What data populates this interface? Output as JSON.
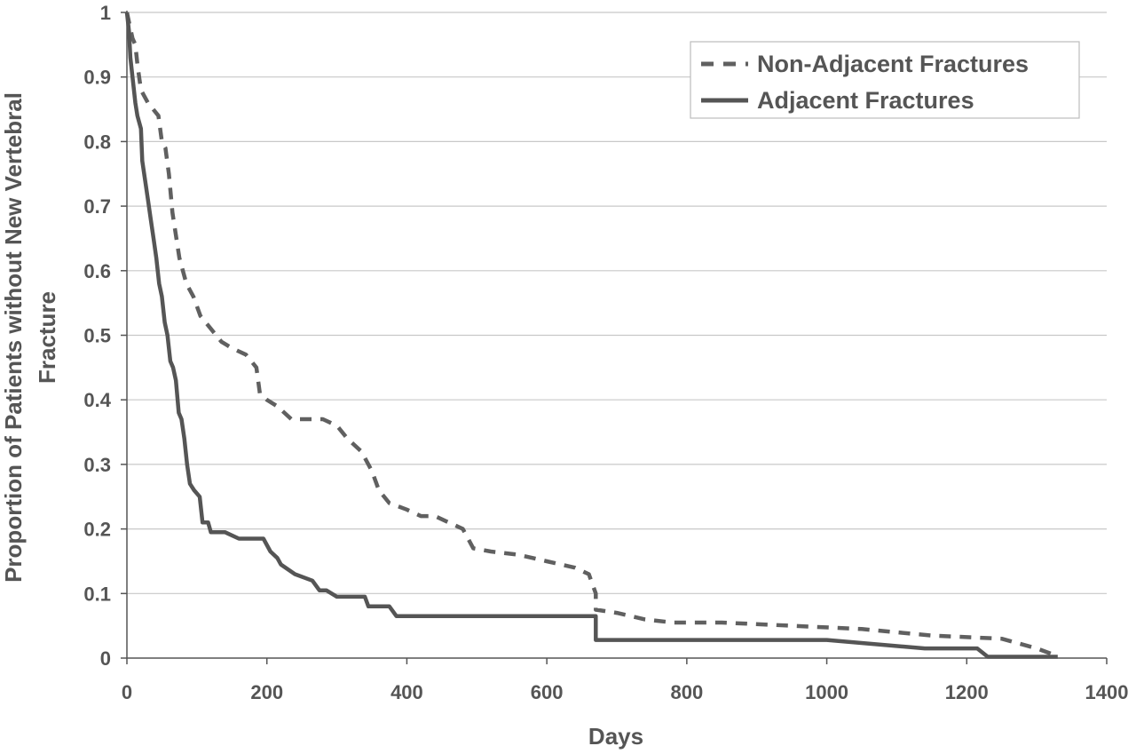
{
  "chart_data": {
    "type": "line",
    "title": "",
    "xlabel": "Days",
    "ylabel_lines": [
      "Proportion of Patients without New Vertebral",
      "Fracture"
    ],
    "xlim": [
      0,
      1400
    ],
    "ylim": [
      0,
      1
    ],
    "x_ticks": [
      0,
      200,
      400,
      600,
      800,
      1000,
      1200,
      1400
    ],
    "y_ticks": [
      0,
      0.1,
      0.2,
      0.3,
      0.4,
      0.5,
      0.6,
      0.7,
      0.8,
      0.9,
      1
    ],
    "x_tick_labels": [
      "0",
      "200",
      "400",
      "600",
      "800",
      "1000",
      "1200",
      "1400"
    ],
    "y_tick_labels": [
      "0",
      "0.1",
      "0.2",
      "0.3",
      "0.4",
      "0.5",
      "0.6",
      "0.7",
      "0.8",
      "0.9",
      "1"
    ],
    "grid": "horizontal",
    "legend_position": "top-right",
    "series": [
      {
        "name": "Non-Adjacent Fractures",
        "style": "dashed",
        "color": "#606060",
        "points": [
          [
            0,
            1
          ],
          [
            8,
            0.96
          ],
          [
            12,
            0.95
          ],
          [
            15,
            0.92
          ],
          [
            20,
            0.88
          ],
          [
            30,
            0.86
          ],
          [
            45,
            0.84
          ],
          [
            50,
            0.8
          ],
          [
            55,
            0.79
          ],
          [
            60,
            0.75
          ],
          [
            65,
            0.69
          ],
          [
            75,
            0.62
          ],
          [
            85,
            0.58
          ],
          [
            95,
            0.56
          ],
          [
            105,
            0.53
          ],
          [
            120,
            0.51
          ],
          [
            135,
            0.49
          ],
          [
            150,
            0.48
          ],
          [
            170,
            0.47
          ],
          [
            185,
            0.45
          ],
          [
            190,
            0.41
          ],
          [
            200,
            0.4
          ],
          [
            215,
            0.39
          ],
          [
            235,
            0.37
          ],
          [
            260,
            0.37
          ],
          [
            280,
            0.37
          ],
          [
            300,
            0.36
          ],
          [
            315,
            0.34
          ],
          [
            335,
            0.32
          ],
          [
            350,
            0.29
          ],
          [
            360,
            0.26
          ],
          [
            375,
            0.24
          ],
          [
            400,
            0.23
          ],
          [
            420,
            0.22
          ],
          [
            440,
            0.22
          ],
          [
            460,
            0.21
          ],
          [
            480,
            0.2
          ],
          [
            495,
            0.17
          ],
          [
            520,
            0.165
          ],
          [
            560,
            0.16
          ],
          [
            600,
            0.15
          ],
          [
            640,
            0.14
          ],
          [
            660,
            0.13
          ],
          [
            670,
            0.1
          ],
          [
            670,
            0.075
          ],
          [
            700,
            0.07
          ],
          [
            740,
            0.06
          ],
          [
            780,
            0.055
          ],
          [
            850,
            0.055
          ],
          [
            950,
            0.05
          ],
          [
            1050,
            0.045
          ],
          [
            1150,
            0.035
          ],
          [
            1250,
            0.03
          ],
          [
            1300,
            0.015
          ],
          [
            1330,
            0.003
          ]
        ]
      },
      {
        "name": "Adjacent Fractures",
        "style": "solid",
        "color": "#555555",
        "points": [
          [
            0,
            1
          ],
          [
            3,
            0.97
          ],
          [
            5,
            0.93
          ],
          [
            10,
            0.88
          ],
          [
            12,
            0.86
          ],
          [
            15,
            0.84
          ],
          [
            20,
            0.82
          ],
          [
            22,
            0.77
          ],
          [
            26,
            0.74
          ],
          [
            30,
            0.71
          ],
          [
            34,
            0.68
          ],
          [
            38,
            0.65
          ],
          [
            42,
            0.62
          ],
          [
            46,
            0.58
          ],
          [
            50,
            0.56
          ],
          [
            54,
            0.52
          ],
          [
            58,
            0.5
          ],
          [
            62,
            0.46
          ],
          [
            66,
            0.45
          ],
          [
            70,
            0.43
          ],
          [
            74,
            0.38
          ],
          [
            78,
            0.37
          ],
          [
            82,
            0.34
          ],
          [
            86,
            0.3
          ],
          [
            90,
            0.27
          ],
          [
            96,
            0.26
          ],
          [
            104,
            0.25
          ],
          [
            108,
            0.21
          ],
          [
            116,
            0.21
          ],
          [
            120,
            0.195
          ],
          [
            140,
            0.195
          ],
          [
            160,
            0.185
          ],
          [
            195,
            0.185
          ],
          [
            205,
            0.165
          ],
          [
            215,
            0.155
          ],
          [
            220,
            0.145
          ],
          [
            240,
            0.13
          ],
          [
            265,
            0.12
          ],
          [
            275,
            0.105
          ],
          [
            285,
            0.105
          ],
          [
            300,
            0.095
          ],
          [
            340,
            0.095
          ],
          [
            345,
            0.08
          ],
          [
            375,
            0.08
          ],
          [
            385,
            0.065
          ],
          [
            670,
            0.065
          ],
          [
            670,
            0.028
          ],
          [
            1000,
            0.028
          ],
          [
            1140,
            0.015
          ],
          [
            1215,
            0.015
          ],
          [
            1230,
            0.002
          ],
          [
            1330,
            0.002
          ]
        ]
      }
    ]
  }
}
